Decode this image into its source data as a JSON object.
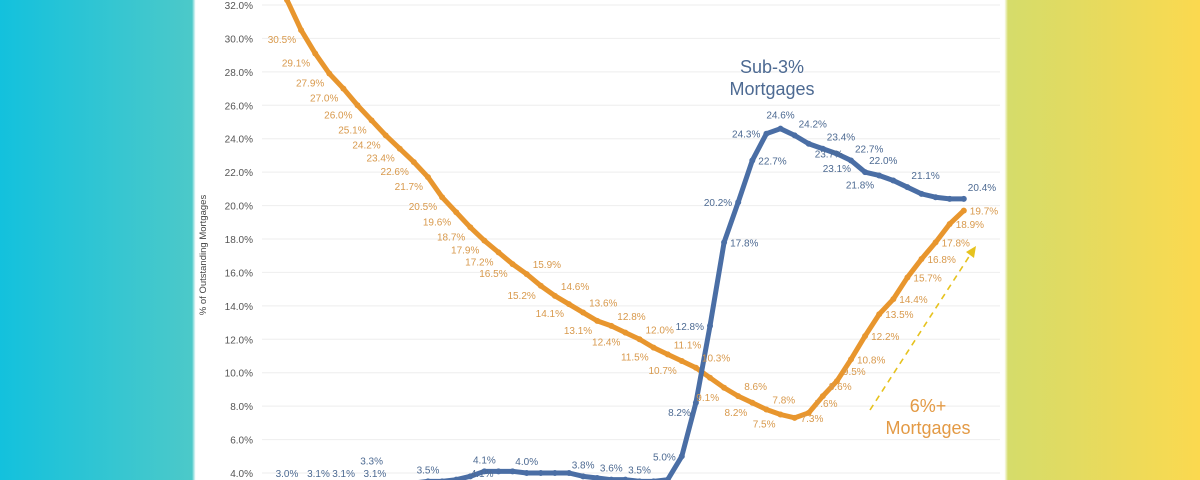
{
  "chart_data": {
    "type": "line",
    "title": "",
    "xlabel": "",
    "ylabel": "% of Outstanding Mortgages",
    "ylim": [
      4,
      32
    ],
    "yticks": [
      "4.0%",
      "6.0%",
      "8.0%",
      "10.0%",
      "12.0%",
      "14.0%",
      "16.0%",
      "18.0%",
      "20.0%",
      "22.0%",
      "24.0%",
      "26.0%",
      "28.0%",
      "30.0%",
      "32.0%"
    ],
    "grid": true,
    "series": [
      {
        "name": "6%+ Mortgages",
        "color": "#e8962e",
        "label_color": "#d8994c",
        "values": [
          32.3,
          30.5,
          29.1,
          27.9,
          27.0,
          26.0,
          25.1,
          24.2,
          23.4,
          22.6,
          21.7,
          20.5,
          19.6,
          18.7,
          17.9,
          17.2,
          16.5,
          15.9,
          15.2,
          14.6,
          14.1,
          13.6,
          13.1,
          12.8,
          12.4,
          12.0,
          11.5,
          11.1,
          10.7,
          10.3,
          9.7,
          9.1,
          8.6,
          8.2,
          7.8,
          7.5,
          7.3,
          7.6,
          8.6,
          9.5,
          10.8,
          12.2,
          13.5,
          14.4,
          15.7,
          16.8,
          17.8,
          18.9,
          19.7
        ],
        "labeled_points": [
          1,
          2,
          3,
          4,
          5,
          6,
          7,
          8,
          9,
          10,
          11,
          12,
          13,
          14,
          15,
          16,
          17,
          18,
          19,
          20,
          21,
          22,
          23,
          24,
          25,
          26,
          27,
          28,
          29,
          31,
          32,
          33,
          34,
          35,
          36,
          37,
          38,
          39,
          40,
          41,
          42,
          43,
          44,
          45,
          46,
          47,
          48
        ]
      },
      {
        "name": "Sub-3% Mortgages",
        "color": "#4a6ea5",
        "label_color": "#4d6a92",
        "values": [
          3.0,
          3.1,
          3.1,
          3.0,
          3.0,
          3.1,
          3.3,
          3.3,
          3.2,
          3.4,
          3.5,
          3.5,
          3.6,
          3.8,
          4.1,
          4.1,
          4.1,
          4.0,
          4.0,
          4.0,
          4.0,
          3.8,
          3.7,
          3.6,
          3.6,
          3.5,
          3.5,
          3.6,
          5.0,
          8.2,
          12.8,
          17.8,
          20.2,
          22.7,
          24.3,
          24.6,
          24.2,
          23.7,
          23.4,
          23.1,
          22.7,
          22.0,
          21.8,
          21.5,
          21.1,
          20.7,
          20.5,
          20.4,
          20.4
        ],
        "labeled_points": [
          0,
          1,
          2,
          5,
          6,
          10,
          14,
          15,
          17,
          21,
          23,
          25,
          28,
          29,
          30,
          31,
          32,
          33,
          34,
          35,
          36,
          37,
          38,
          39,
          40,
          41,
          42,
          44,
          48
        ]
      }
    ],
    "annotations": [
      {
        "text_line1": "Sub-3%",
        "text_line2": "Mortgages",
        "series": "Sub-3% Mortgages"
      },
      {
        "text_line1": "6%+",
        "text_line2": "Mortgages",
        "series": "6%+ Mortgages"
      }
    ],
    "trend_arrow_color": "#e6c21e"
  }
}
